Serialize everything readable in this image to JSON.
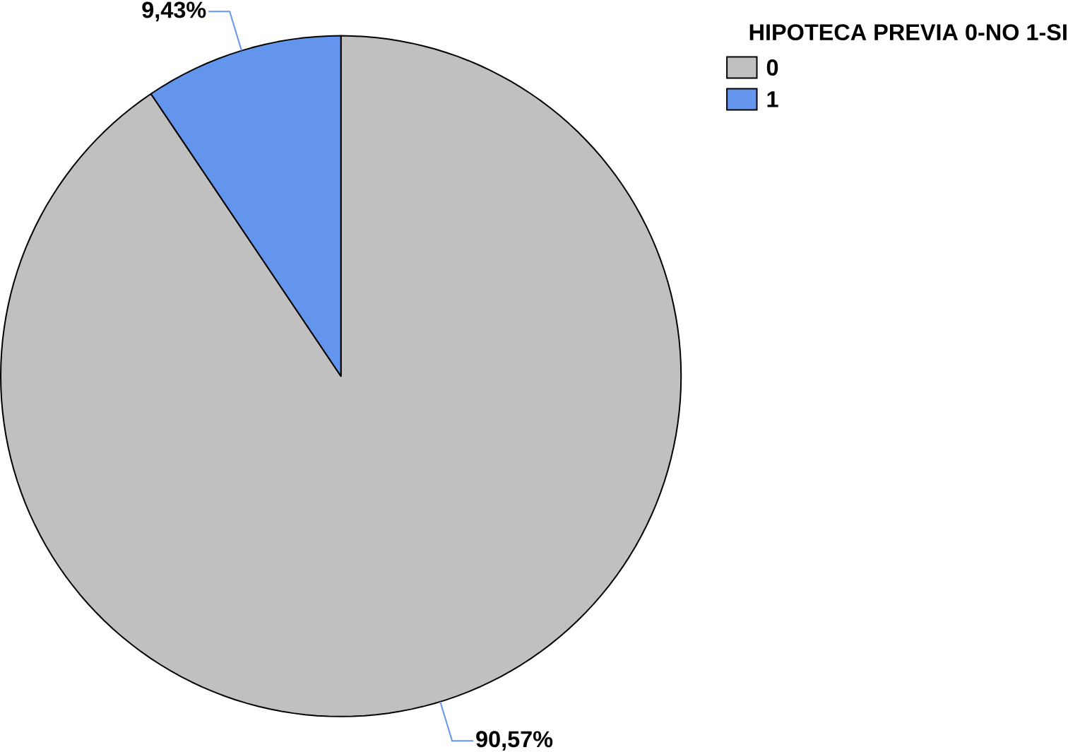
{
  "chart_data": {
    "type": "pie",
    "legend_title": "HIPOTECA PREVIA 0-NO  1-SI",
    "legend": "top right",
    "categories": [
      "0",
      "1"
    ],
    "values": [
      90.57,
      9.43
    ],
    "value_labels": [
      "90,57%",
      "9,43%"
    ],
    "colors": [
      "#c0c0c0",
      "#6495ed"
    ]
  }
}
